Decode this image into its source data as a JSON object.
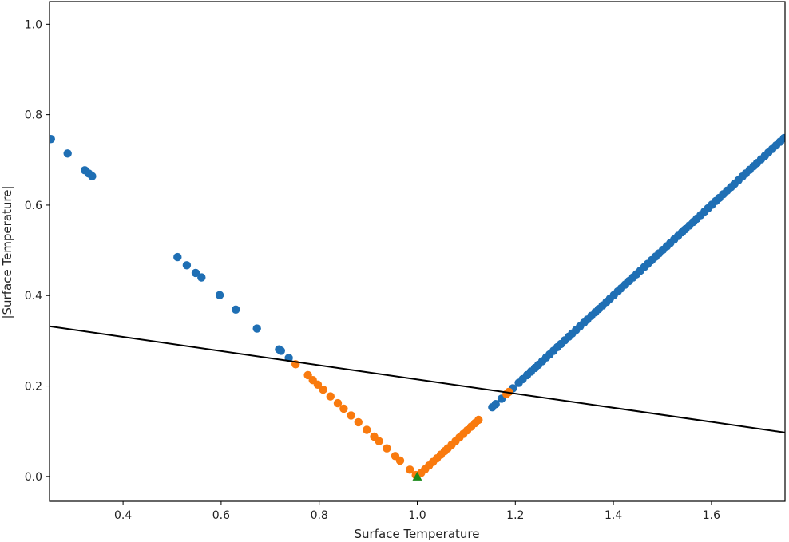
{
  "chart_data": {
    "type": "scatter",
    "title": "",
    "xlabel": "Surface Temperature",
    "ylabel": "|Surface Temperature|",
    "xlim": [
      0.25,
      1.75
    ],
    "ylim": [
      -0.055,
      1.05
    ],
    "xticks": [
      0.4,
      0.6,
      0.8,
      1.0,
      1.2,
      1.4,
      1.6
    ],
    "yticks": [
      0.0,
      0.2,
      0.4,
      0.6,
      0.8,
      1.0
    ],
    "grid": false,
    "legend": "none",
    "colors": {
      "outside": "#1f6fb4",
      "inside": "#f97a0e",
      "marker": "#1a8a1a",
      "line": "#000000",
      "axes": "#000000"
    },
    "series": [
      {
        "key": "outside",
        "points": [
          [
            0.253,
            0.746
          ],
          [
            0.287,
            0.714
          ],
          [
            0.322,
            0.677
          ],
          [
            0.33,
            0.67
          ],
          [
            0.337,
            0.664
          ],
          [
            0.511,
            0.485
          ],
          [
            0.53,
            0.467
          ],
          [
            0.548,
            0.45
          ],
          [
            0.56,
            0.44
          ],
          [
            0.597,
            0.401
          ],
          [
            0.63,
            0.369
          ],
          [
            0.673,
            0.327
          ],
          [
            0.718,
            0.281
          ],
          [
            0.722,
            0.278
          ],
          [
            0.738,
            0.262
          ],
          [
            1.153,
            0.153
          ],
          [
            1.16,
            0.16
          ],
          [
            1.172,
            0.172
          ],
          [
            1.195,
            0.195
          ],
          [
            1.207,
            0.207
          ],
          [
            1.215,
            0.215
          ],
          [
            1.224,
            0.224
          ],
          [
            1.232,
            0.232
          ],
          [
            1.24,
            0.24
          ],
          [
            1.247,
            0.247
          ],
          [
            1.255,
            0.255
          ],
          [
            1.263,
            0.263
          ],
          [
            1.27,
            0.27
          ],
          [
            1.278,
            0.278
          ],
          [
            1.286,
            0.286
          ],
          [
            1.293,
            0.293
          ],
          [
            1.301,
            0.301
          ],
          [
            1.309,
            0.309
          ],
          [
            1.316,
            0.316
          ],
          [
            1.324,
            0.324
          ],
          [
            1.332,
            0.332
          ],
          [
            1.34,
            0.34
          ],
          [
            1.347,
            0.347
          ],
          [
            1.355,
            0.355
          ],
          [
            1.363,
            0.363
          ],
          [
            1.37,
            0.37
          ],
          [
            1.378,
            0.378
          ],
          [
            1.386,
            0.386
          ],
          [
            1.393,
            0.393
          ],
          [
            1.401,
            0.401
          ],
          [
            1.409,
            0.409
          ],
          [
            1.416,
            0.416
          ],
          [
            1.424,
            0.424
          ],
          [
            1.432,
            0.432
          ],
          [
            1.44,
            0.44
          ],
          [
            1.447,
            0.447
          ],
          [
            1.455,
            0.455
          ],
          [
            1.463,
            0.463
          ],
          [
            1.47,
            0.47
          ],
          [
            1.478,
            0.478
          ],
          [
            1.486,
            0.486
          ],
          [
            1.493,
            0.493
          ],
          [
            1.501,
            0.501
          ],
          [
            1.509,
            0.509
          ],
          [
            1.516,
            0.516
          ],
          [
            1.524,
            0.524
          ],
          [
            1.532,
            0.532
          ],
          [
            1.54,
            0.54
          ],
          [
            1.547,
            0.547
          ],
          [
            1.555,
            0.555
          ],
          [
            1.563,
            0.563
          ],
          [
            1.57,
            0.57
          ],
          [
            1.578,
            0.578
          ],
          [
            1.586,
            0.586
          ],
          [
            1.593,
            0.593
          ],
          [
            1.601,
            0.601
          ],
          [
            1.609,
            0.609
          ],
          [
            1.616,
            0.616
          ],
          [
            1.624,
            0.624
          ],
          [
            1.632,
            0.632
          ],
          [
            1.64,
            0.64
          ],
          [
            1.647,
            0.647
          ],
          [
            1.655,
            0.655
          ],
          [
            1.663,
            0.663
          ],
          [
            1.67,
            0.67
          ],
          [
            1.678,
            0.678
          ],
          [
            1.686,
            0.686
          ],
          [
            1.693,
            0.693
          ],
          [
            1.701,
            0.701
          ],
          [
            1.709,
            0.709
          ],
          [
            1.716,
            0.716
          ],
          [
            1.724,
            0.724
          ],
          [
            1.732,
            0.732
          ],
          [
            1.74,
            0.74
          ],
          [
            1.748,
            0.748
          ]
        ]
      },
      {
        "key": "inside",
        "points": [
          [
            0.752,
            0.248
          ],
          [
            0.777,
            0.224
          ],
          [
            0.787,
            0.213
          ],
          [
            0.797,
            0.203
          ],
          [
            0.808,
            0.192
          ],
          [
            0.823,
            0.177
          ],
          [
            0.838,
            0.162
          ],
          [
            0.85,
            0.15
          ],
          [
            0.865,
            0.135
          ],
          [
            0.88,
            0.12
          ],
          [
            0.897,
            0.103
          ],
          [
            0.912,
            0.088
          ],
          [
            0.922,
            0.078
          ],
          [
            0.938,
            0.062
          ],
          [
            0.955,
            0.045
          ],
          [
            0.965,
            0.035
          ],
          [
            0.985,
            0.015
          ],
          [
            0.997,
            0.003
          ],
          [
            1.008,
            0.008
          ],
          [
            1.016,
            0.016
          ],
          [
            1.024,
            0.024
          ],
          [
            1.032,
            0.032
          ],
          [
            1.04,
            0.04
          ],
          [
            1.048,
            0.048
          ],
          [
            1.056,
            0.056
          ],
          [
            1.062,
            0.062
          ],
          [
            1.07,
            0.07
          ],
          [
            1.078,
            0.078
          ],
          [
            1.086,
            0.086
          ],
          [
            1.094,
            0.094
          ],
          [
            1.102,
            0.102
          ],
          [
            1.11,
            0.11
          ],
          [
            1.118,
            0.118
          ],
          [
            1.125,
            0.125
          ],
          [
            1.182,
            0.182
          ],
          [
            1.187,
            0.187
          ]
        ]
      }
    ],
    "marker": {
      "shape": "triangle",
      "x": 1.0,
      "y": 0.0
    },
    "reference_line": {
      "x": [
        0.25,
        1.75
      ],
      "y": [
        0.332,
        0.097
      ]
    }
  }
}
